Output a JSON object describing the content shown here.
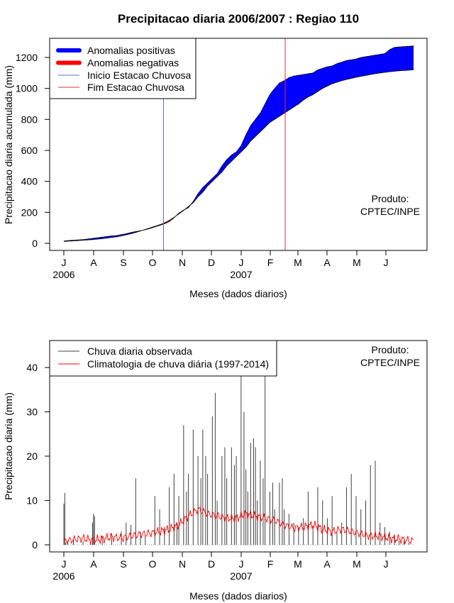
{
  "title": "Precipitacao diaria 2006/2007 : Regiao 110",
  "chart_data": [
    {
      "type": "area",
      "ylabel": "Precipitacao diaria acumulada (mm)",
      "xlabel": "Meses (dados diarios)",
      "ylim": [
        0,
        1300
      ],
      "yticks": [
        "0",
        "200",
        "400",
        "600",
        "800",
        "1000",
        "1200"
      ],
      "month_labels": [
        "J",
        "A",
        "S",
        "O",
        "N",
        "D",
        "J",
        "F",
        "M",
        "A",
        "M",
        "J"
      ],
      "year_labels": [
        "2006",
        "2007"
      ],
      "legend": {
        "position": "top-left",
        "items": [
          "Anomalias positivas",
          "Anomalias negativas",
          "Inicio Estacao Chuvosa",
          "Fim Estacao Chuvosa"
        ]
      },
      "colors": {
        "positive": "#0000ff",
        "negative": "#ff0000",
        "onset": "#5b6fd6",
        "end": "#e03030"
      },
      "onset_day": 104,
      "end_day": 231,
      "annotation": [
        "Produto:",
        "CPTEC/INPE"
      ],
      "observed": {
        "day": [
          0,
          5,
          10,
          15,
          20,
          25,
          30,
          35,
          40,
          45,
          50,
          55,
          60,
          65,
          70,
          75,
          80,
          85,
          90,
          95,
          100,
          105,
          110,
          115,
          120,
          125,
          130,
          135,
          140,
          145,
          150,
          155,
          160,
          165,
          170,
          175,
          180,
          185,
          190,
          195,
          200,
          205,
          210,
          215,
          220,
          225,
          230,
          235,
          240,
          245,
          250,
          255,
          260,
          265,
          270,
          275,
          280,
          285,
          290,
          295,
          300,
          305,
          310,
          315,
          320,
          325,
          330,
          335,
          340,
          345,
          350,
          355,
          360,
          365
        ],
        "value": [
          15,
          18,
          20,
          22,
          24,
          28,
          32,
          36,
          40,
          44,
          48,
          50,
          56,
          62,
          70,
          76,
          82,
          88,
          96,
          106,
          116,
          126,
          140,
          165,
          195,
          215,
          230,
          270,
          320,
          360,
          390,
          420,
          450,
          500,
          540,
          570,
          590,
          630,
          700,
          760,
          800,
          840,
          900,
          960,
          1000,
          1035,
          1050,
          1070,
          1080,
          1085,
          1090,
          1095,
          1100,
          1120,
          1130,
          1140,
          1145,
          1160,
          1170,
          1180,
          1185,
          1190,
          1200,
          1205,
          1210,
          1215,
          1220,
          1225,
          1250,
          1265,
          1268,
          1270,
          1272,
          1275
        ]
      },
      "climatology": {
        "day": [
          0,
          5,
          10,
          15,
          20,
          25,
          30,
          35,
          40,
          45,
          50,
          55,
          60,
          65,
          70,
          75,
          80,
          85,
          90,
          95,
          100,
          105,
          110,
          115,
          120,
          125,
          130,
          135,
          140,
          145,
          150,
          155,
          160,
          165,
          170,
          175,
          180,
          185,
          190,
          195,
          200,
          205,
          210,
          215,
          220,
          225,
          230,
          235,
          240,
          245,
          250,
          255,
          260,
          265,
          270,
          275,
          280,
          285,
          290,
          295,
          300,
          305,
          310,
          315,
          320,
          325,
          330,
          335,
          340,
          345,
          350,
          355,
          360,
          365
        ],
        "value": [
          12,
          14,
          16,
          18,
          20,
          22,
          24,
          27,
          30,
          34,
          38,
          42,
          48,
          55,
          62,
          70,
          80,
          90,
          100,
          110,
          120,
          132,
          148,
          168,
          190,
          212,
          238,
          262,
          300,
          330,
          370,
          400,
          430,
          460,
          500,
          530,
          560,
          590,
          620,
          660,
          690,
          720,
          750,
          780,
          800,
          820,
          840,
          860,
          880,
          900,
          925,
          945,
          960,
          980,
          1000,
          1015,
          1030,
          1040,
          1050,
          1058,
          1065,
          1072,
          1078,
          1084,
          1090,
          1095,
          1100,
          1104,
          1108,
          1111,
          1114,
          1116,
          1118,
          1120
        ]
      }
    },
    {
      "type": "bar",
      "ylabel": "Precipitacao diaria (mm)",
      "xlabel": "Meses (dados diarios)",
      "ylim": [
        0,
        45
      ],
      "yticks": [
        "0",
        "10",
        "20",
        "30",
        "40"
      ],
      "month_labels": [
        "J",
        "A",
        "S",
        "O",
        "N",
        "D",
        "J",
        "F",
        "M",
        "A",
        "M",
        "J"
      ],
      "year_labels": [
        "2006",
        "2007"
      ],
      "legend": {
        "position": "top-left",
        "items": [
          "Chuva diaria observada",
          "Climatologia de chuva diária (1997-2014)"
        ]
      },
      "colors": {
        "observed": "#404040",
        "climatology": "#ff0000"
      },
      "annotation": [
        "Produto:",
        "CPTEC/INPE"
      ],
      "daily_observed": {
        "day": [
          0,
          1,
          2,
          4,
          10,
          20,
          30,
          31,
          32,
          40,
          50,
          60,
          65,
          70,
          75,
          80,
          85,
          95,
          100,
          105,
          110,
          115,
          118,
          120,
          125,
          128,
          130,
          135,
          140,
          143,
          145,
          148,
          150,
          155,
          158,
          160,
          165,
          168,
          170,
          175,
          178,
          180,
          185,
          188,
          190,
          192,
          195,
          198,
          200,
          202,
          205,
          208,
          210,
          215,
          218,
          220,
          225,
          228,
          230,
          235,
          240,
          245,
          250,
          255,
          260,
          265,
          270,
          275,
          280,
          285,
          290,
          295,
          300,
          305,
          310,
          315,
          320,
          325,
          330,
          335,
          340,
          345,
          350,
          355,
          360
        ],
        "value": [
          9.3,
          11.7,
          0.5,
          1.0,
          1.2,
          0.8,
          5.0,
          7.0,
          6.5,
          2.0,
          2.5,
          3.0,
          5.0,
          4.5,
          15.0,
          3.0,
          2.0,
          11.0,
          8.0,
          4.0,
          13.0,
          16.0,
          5.0,
          11.0,
          27.0,
          12.0,
          16.0,
          26.0,
          20.0,
          15.0,
          26.0,
          20.0,
          16.0,
          29.0,
          34.3,
          10.0,
          20.0,
          22.0,
          15.0,
          22.0,
          18.0,
          20.0,
          38.9,
          30.0,
          17.0,
          12.0,
          23.0,
          24.0,
          22.0,
          10.0,
          19.0,
          15.0,
          38.0,
          12.0,
          14.0,
          8.0,
          14.0,
          15.0,
          8.0,
          7.0,
          5.0,
          4.0,
          6.0,
          12.0,
          4.0,
          13.0,
          10.0,
          6.0,
          11.0,
          3.0,
          5.0,
          13.0,
          16.0,
          11.0,
          8.0,
          10.0,
          18.0,
          19.0,
          5.0,
          4.0,
          3.0,
          2.0,
          1.0,
          1.0,
          0.5
        ]
      },
      "climatology_daily": {
        "day": [
          0,
          10,
          20,
          30,
          40,
          50,
          60,
          70,
          80,
          90,
          100,
          110,
          120,
          130,
          140,
          150,
          160,
          170,
          180,
          190,
          200,
          210,
          220,
          230,
          240,
          250,
          260,
          270,
          280,
          290,
          300,
          310,
          320,
          330,
          340,
          350,
          360,
          365
        ],
        "value": [
          0.8,
          1.2,
          1.5,
          1.0,
          1.3,
          1.8,
          1.5,
          2.0,
          2.4,
          2.6,
          3.0,
          3.5,
          4.5,
          6.5,
          8.0,
          7.0,
          6.5,
          6.0,
          6.0,
          7.0,
          6.5,
          6.0,
          5.5,
          4.5,
          3.8,
          4.0,
          4.5,
          3.5,
          3.0,
          3.5,
          3.0,
          2.5,
          2.0,
          2.0,
          1.5,
          1.3,
          1.0,
          0.9
        ]
      }
    }
  ]
}
